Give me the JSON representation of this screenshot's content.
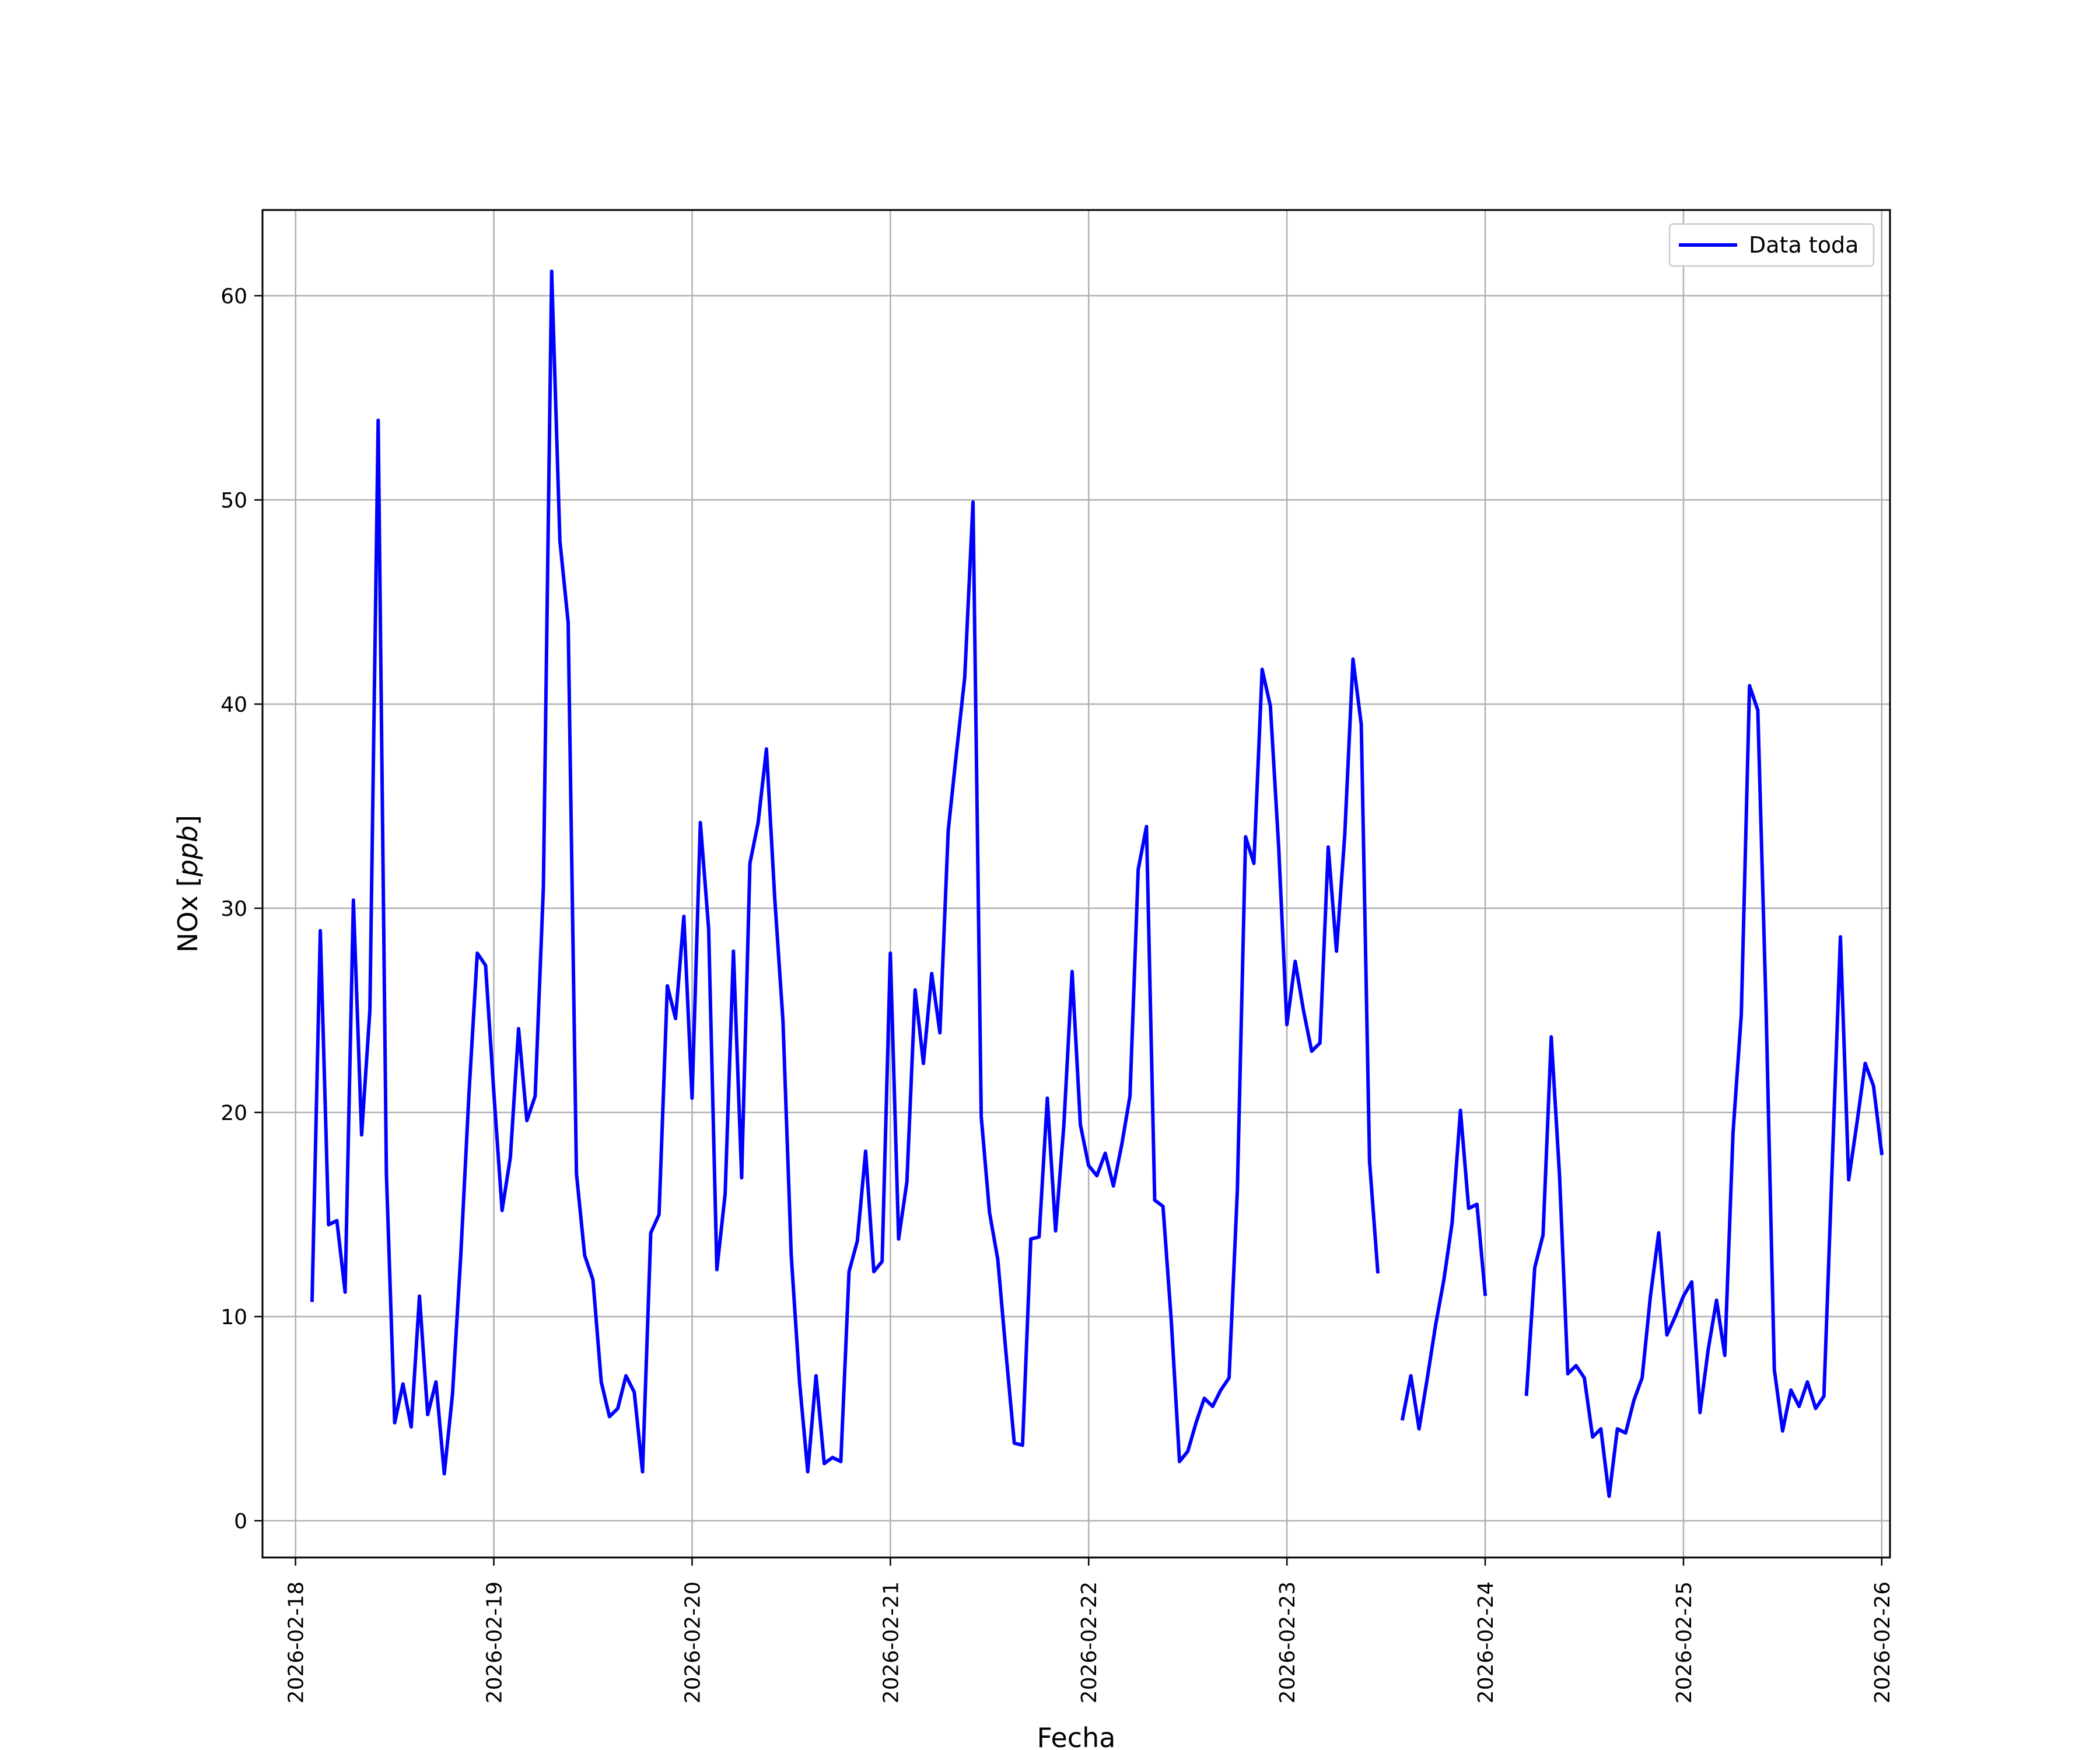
{
  "chart_data": {
    "type": "line",
    "title": "",
    "xlabel": "Fecha",
    "ylabel": "NOx [ppb]",
    "ylabel_parts": {
      "base": "NOx ",
      "unit": "ppb"
    },
    "grid": true,
    "legend_position": "top-right",
    "xlim": [
      "2026-02-17T20:00",
      "2026-02-26T01:00"
    ],
    "ylim": [
      -1.8,
      64.2
    ],
    "x_ticks": [
      "2026-02-18",
      "2026-02-19",
      "2026-02-20",
      "2026-02-21",
      "2026-02-22",
      "2026-02-23",
      "2026-02-24",
      "2026-02-25",
      "2026-02-26"
    ],
    "y_ticks": [
      0,
      10,
      20,
      30,
      40,
      50,
      60
    ],
    "series": [
      {
        "name": "Data toda",
        "color": "#0000ff",
        "points": [
          [
            "2026-02-18T02:00",
            10.8
          ],
          [
            "2026-02-18T03:00",
            28.9
          ],
          [
            "2026-02-18T04:00",
            14.5
          ],
          [
            "2026-02-18T05:00",
            14.7
          ],
          [
            "2026-02-18T06:00",
            11.2
          ],
          [
            "2026-02-18T07:00",
            30.4
          ],
          [
            "2026-02-18T08:00",
            18.9
          ],
          [
            "2026-02-18T09:00",
            25.0
          ],
          [
            "2026-02-18T10:00",
            53.9
          ],
          [
            "2026-02-18T11:00",
            17.0
          ],
          [
            "2026-02-18T12:00",
            4.8
          ],
          [
            "2026-02-18T13:00",
            6.7
          ],
          [
            "2026-02-18T14:00",
            4.6
          ],
          [
            "2026-02-18T15:00",
            11.0
          ],
          [
            "2026-02-18T16:00",
            5.2
          ],
          [
            "2026-02-18T17:00",
            6.8
          ],
          [
            "2026-02-18T18:00",
            2.3
          ],
          [
            "2026-02-18T19:00",
            6.2
          ],
          [
            "2026-02-18T20:00",
            13.0
          ],
          [
            "2026-02-18T21:00",
            21.0
          ],
          [
            "2026-02-18T22:00",
            27.8
          ],
          [
            "2026-02-18T23:00",
            27.2
          ],
          [
            "2026-02-19T00:00",
            21.0
          ],
          [
            "2026-02-19T01:00",
            15.2
          ],
          [
            "2026-02-19T02:00",
            17.8
          ],
          [
            "2026-02-19T03:00",
            24.1
          ],
          [
            "2026-02-19T04:00",
            19.6
          ],
          [
            "2026-02-19T05:00",
            20.8
          ],
          [
            "2026-02-19T06:00",
            31.0
          ],
          [
            "2026-02-19T07:00",
            61.2
          ],
          [
            "2026-02-19T08:00",
            48.0
          ],
          [
            "2026-02-19T09:00",
            44.0
          ],
          [
            "2026-02-19T10:00",
            17.0
          ],
          [
            "2026-02-19T11:00",
            13.0
          ],
          [
            "2026-02-19T12:00",
            11.8
          ],
          [
            "2026-02-19T13:00",
            6.8
          ],
          [
            "2026-02-19T14:00",
            5.1
          ],
          [
            "2026-02-19T15:00",
            5.5
          ],
          [
            "2026-02-19T16:00",
            7.1
          ],
          [
            "2026-02-19T17:00",
            6.3
          ],
          [
            "2026-02-19T18:00",
            2.4
          ],
          [
            "2026-02-19T19:00",
            14.1
          ],
          [
            "2026-02-19T20:00",
            15.0
          ],
          [
            "2026-02-19T21:00",
            26.2
          ],
          [
            "2026-02-19T22:00",
            24.6
          ],
          [
            "2026-02-19T23:00",
            29.6
          ],
          [
            "2026-02-20T00:00",
            20.7
          ],
          [
            "2026-02-20T01:00",
            34.2
          ],
          [
            "2026-02-20T02:00",
            29.0
          ],
          [
            "2026-02-20T03:00",
            12.3
          ],
          [
            "2026-02-20T04:00",
            16.0
          ],
          [
            "2026-02-20T05:00",
            27.9
          ],
          [
            "2026-02-20T06:00",
            16.8
          ],
          [
            "2026-02-20T07:00",
            32.2
          ],
          [
            "2026-02-20T08:00",
            34.2
          ],
          [
            "2026-02-20T09:00",
            37.8
          ],
          [
            "2026-02-20T10:00",
            30.5
          ],
          [
            "2026-02-20T11:00",
            24.5
          ],
          [
            "2026-02-20T12:00",
            13.0
          ],
          [
            "2026-02-20T13:00",
            6.8
          ],
          [
            "2026-02-20T14:00",
            2.4
          ],
          [
            "2026-02-20T15:00",
            7.1
          ],
          [
            "2026-02-20T16:00",
            2.8
          ],
          [
            "2026-02-20T17:00",
            3.1
          ],
          [
            "2026-02-20T18:00",
            2.9
          ],
          [
            "2026-02-20T19:00",
            12.2
          ],
          [
            "2026-02-20T20:00",
            13.7
          ],
          [
            "2026-02-20T21:00",
            18.1
          ],
          [
            "2026-02-20T22:00",
            12.2
          ],
          [
            "2026-02-20T23:00",
            12.7
          ],
          [
            "2026-02-21T00:00",
            27.8
          ],
          [
            "2026-02-21T01:00",
            13.8
          ],
          [
            "2026-02-21T02:00",
            16.6
          ],
          [
            "2026-02-21T03:00",
            26.0
          ],
          [
            "2026-02-21T04:00",
            22.4
          ],
          [
            "2026-02-21T05:00",
            26.8
          ],
          [
            "2026-02-21T06:00",
            23.9
          ],
          [
            "2026-02-21T07:00",
            33.8
          ],
          [
            "2026-02-21T08:00",
            37.6
          ],
          [
            "2026-02-21T09:00",
            41.3
          ],
          [
            "2026-02-21T10:00",
            49.9
          ],
          [
            "2026-02-21T11:00",
            19.8
          ],
          [
            "2026-02-21T12:00",
            15.1
          ],
          [
            "2026-02-21T13:00",
            12.8
          ],
          [
            "2026-02-21T14:00",
            8.2
          ],
          [
            "2026-02-21T15:00",
            3.8
          ],
          [
            "2026-02-21T16:00",
            3.7
          ],
          [
            "2026-02-21T17:00",
            13.8
          ],
          [
            "2026-02-21T18:00",
            13.9
          ],
          [
            "2026-02-21T19:00",
            20.7
          ],
          [
            "2026-02-21T20:00",
            14.2
          ],
          [
            "2026-02-21T21:00",
            19.4
          ],
          [
            "2026-02-21T22:00",
            26.9
          ],
          [
            "2026-02-21T23:00",
            19.4
          ],
          [
            "2026-02-22T00:00",
            17.4
          ],
          [
            "2026-02-22T01:00",
            16.9
          ],
          [
            "2026-02-22T02:00",
            18.0
          ],
          [
            "2026-02-22T03:00",
            16.4
          ],
          [
            "2026-02-22T04:00",
            18.4
          ],
          [
            "2026-02-22T05:00",
            20.8
          ],
          [
            "2026-02-22T06:00",
            31.9
          ],
          [
            "2026-02-22T07:00",
            34.0
          ],
          [
            "2026-02-22T08:00",
            15.7
          ],
          [
            "2026-02-22T09:00",
            15.4
          ],
          [
            "2026-02-22T10:00",
            9.8
          ],
          [
            "2026-02-22T11:00",
            2.9
          ],
          [
            "2026-02-22T12:00",
            3.4
          ],
          [
            "2026-02-22T13:00",
            4.8
          ],
          [
            "2026-02-22T14:00",
            6.0
          ],
          [
            "2026-02-22T15:00",
            5.6
          ],
          [
            "2026-02-22T16:00",
            6.4
          ],
          [
            "2026-02-22T17:00",
            7.0
          ],
          [
            "2026-02-22T18:00",
            16.2
          ],
          [
            "2026-02-22T19:00",
            33.5
          ],
          [
            "2026-02-22T20:00",
            32.2
          ],
          [
            "2026-02-22T21:00",
            41.7
          ],
          [
            "2026-02-22T22:00",
            39.9
          ],
          [
            "2026-02-22T23:00",
            33.0
          ],
          [
            "2026-02-23T00:00",
            24.3
          ],
          [
            "2026-02-23T01:00",
            27.4
          ],
          [
            "2026-02-23T02:00",
            25.0
          ],
          [
            "2026-02-23T03:00",
            23.0
          ],
          [
            "2026-02-23T04:00",
            23.4
          ],
          [
            "2026-02-23T05:00",
            33.0
          ],
          [
            "2026-02-23T06:00",
            27.9
          ],
          [
            "2026-02-23T07:00",
            33.6
          ],
          [
            "2026-02-23T08:00",
            42.2
          ],
          [
            "2026-02-23T09:00",
            39.0
          ],
          [
            "2026-02-23T10:00",
            17.6
          ],
          [
            "2026-02-23T11:00",
            12.2
          ],
          null,
          [
            "2026-02-23T14:00",
            5.0
          ],
          [
            "2026-02-23T15:00",
            7.1
          ],
          [
            "2026-02-23T16:00",
            4.5
          ],
          [
            "2026-02-23T17:00",
            7.0
          ],
          [
            "2026-02-23T18:00",
            9.6
          ],
          [
            "2026-02-23T19:00",
            11.8
          ],
          [
            "2026-02-23T20:00",
            14.6
          ],
          [
            "2026-02-23T21:00",
            20.1
          ],
          [
            "2026-02-23T22:00",
            15.3
          ],
          [
            "2026-02-23T23:00",
            15.5
          ],
          [
            "2026-02-24T00:00",
            11.1
          ],
          null,
          [
            "2026-02-24T05:00",
            6.2
          ],
          [
            "2026-02-24T06:00",
            12.4
          ],
          [
            "2026-02-24T07:00",
            14.0
          ],
          [
            "2026-02-24T08:00",
            23.7
          ],
          [
            "2026-02-24T09:00",
            16.9
          ],
          [
            "2026-02-24T10:00",
            7.2
          ],
          [
            "2026-02-24T11:00",
            7.6
          ],
          [
            "2026-02-24T12:00",
            7.0
          ],
          [
            "2026-02-24T13:00",
            4.1
          ],
          [
            "2026-02-24T14:00",
            4.5
          ],
          [
            "2026-02-24T15:00",
            1.2
          ],
          [
            "2026-02-24T16:00",
            4.5
          ],
          [
            "2026-02-24T17:00",
            4.3
          ],
          [
            "2026-02-24T18:00",
            5.9
          ],
          [
            "2026-02-24T19:00",
            7.0
          ],
          [
            "2026-02-24T20:00",
            11.0
          ],
          [
            "2026-02-24T21:00",
            14.1
          ],
          [
            "2026-02-24T22:00",
            9.1
          ],
          [
            "2026-02-24T23:00",
            10.0
          ],
          [
            "2026-02-25T00:00",
            11.0
          ],
          [
            "2026-02-25T01:00",
            11.7
          ],
          [
            "2026-02-25T02:00",
            5.3
          ],
          [
            "2026-02-25T03:00",
            8.4
          ],
          [
            "2026-02-25T04:00",
            10.8
          ],
          [
            "2026-02-25T05:00",
            8.1
          ],
          [
            "2026-02-25T06:00",
            19.0
          ],
          [
            "2026-02-25T07:00",
            24.8
          ],
          [
            "2026-02-25T08:00",
            40.9
          ],
          [
            "2026-02-25T09:00",
            39.7
          ],
          [
            "2026-02-25T10:00",
            25.0
          ],
          [
            "2026-02-25T11:00",
            7.4
          ],
          [
            "2026-02-25T12:00",
            4.4
          ],
          [
            "2026-02-25T13:00",
            6.4
          ],
          [
            "2026-02-25T14:00",
            5.6
          ],
          [
            "2026-02-25T15:00",
            6.8
          ],
          [
            "2026-02-25T16:00",
            5.5
          ],
          [
            "2026-02-25T17:00",
            6.1
          ],
          [
            "2026-02-25T18:00",
            17.4
          ],
          [
            "2026-02-25T19:00",
            28.6
          ],
          [
            "2026-02-25T20:00",
            16.7
          ],
          [
            "2026-02-25T21:00",
            19.5
          ],
          [
            "2026-02-25T22:00",
            22.4
          ],
          [
            "2026-02-25T23:00",
            21.3
          ],
          [
            "2026-02-26T00:00",
            18.0
          ]
        ]
      }
    ]
  }
}
